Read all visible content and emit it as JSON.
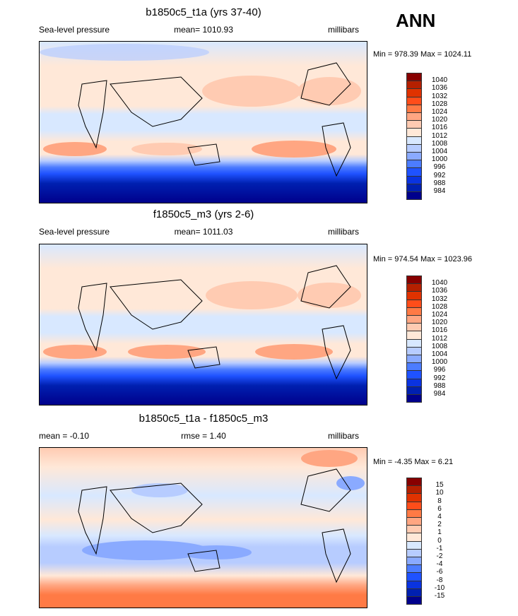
{
  "header": {
    "season": "ANN"
  },
  "palette": [
    "#870000",
    "#b52000",
    "#e03200",
    "#ff4d1a",
    "#ff7a45",
    "#ffa682",
    "#ffcbb2",
    "#ffe8d8",
    "#d8e8ff",
    "#b7ccff",
    "#8aaaff",
    "#4c7cff",
    "#1f52ff",
    "#0a33e0",
    "#0020b0",
    "#00008c"
  ],
  "panels": [
    {
      "title": "b1850c5_t1a (yrs 37-40)",
      "left": "Sea-level pressure",
      "center": "mean= 1010.93",
      "right": "millibars",
      "minmax": "Min = 978.39 Max = 1024.11",
      "levels": [
        "1040",
        "1036",
        "1032",
        "1028",
        "1024",
        "1020",
        "1016",
        "1012",
        "1008",
        "1004",
        "1000",
        "996",
        "992",
        "988",
        "984"
      ]
    },
    {
      "title": "f1850c5_m3 (yrs 2-6)",
      "left": "Sea-level pressure",
      "center": "mean= 1011.03",
      "right": "millibars",
      "minmax": "Min = 974.54 Max = 1023.96",
      "levels": [
        "1040",
        "1036",
        "1032",
        "1028",
        "1024",
        "1020",
        "1016",
        "1012",
        "1008",
        "1004",
        "1000",
        "996",
        "992",
        "988",
        "984"
      ]
    },
    {
      "title": "b1850c5_t1a - f1850c5_m3",
      "left": "mean =  -0.10",
      "center": "rmse =   1.40",
      "right": "millibars",
      "minmax": "Min =  -4.35 Max =   6.21",
      "levels": [
        "15",
        "10",
        "8",
        "6",
        "4",
        "2",
        "1",
        "0",
        "-1",
        "-2",
        "-4",
        "-6",
        "-8",
        "-10",
        "-15"
      ]
    }
  ]
}
